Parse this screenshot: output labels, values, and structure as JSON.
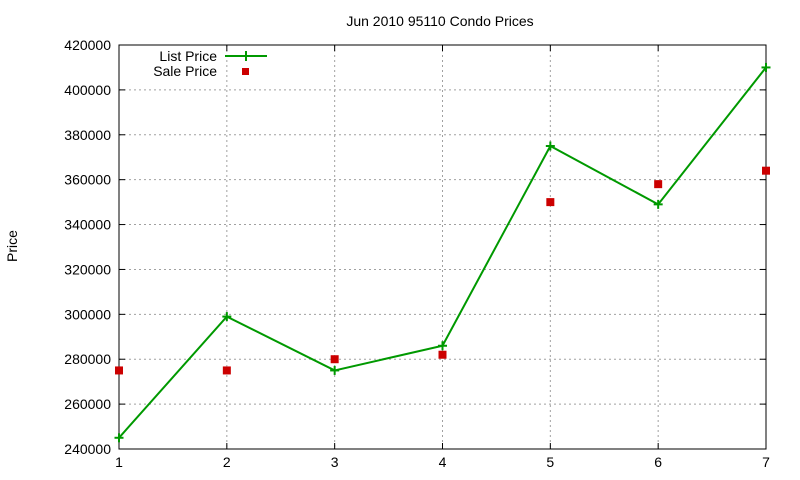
{
  "chart_data": {
    "type": "line",
    "title": "Jun 2010 95110 Condo Prices",
    "xlabel": "",
    "ylabel": "Price",
    "xlim": [
      1,
      7
    ],
    "ylim": [
      240000,
      420000
    ],
    "x_ticks": [
      1,
      2,
      3,
      4,
      5,
      6,
      7
    ],
    "y_ticks": [
      240000,
      260000,
      280000,
      300000,
      320000,
      340000,
      360000,
      380000,
      400000,
      420000
    ],
    "grid": true,
    "legend_position": "top-left",
    "series": [
      {
        "name": "List Price",
        "style": "line-with-plus-markers",
        "color": "#009900",
        "x": [
          1,
          2,
          3,
          4,
          5,
          6,
          7
        ],
        "values": [
          245000,
          299000,
          275000,
          286000,
          375000,
          349000,
          410000
        ]
      },
      {
        "name": "Sale Price",
        "style": "square-markers",
        "color": "#cc0000",
        "x": [
          1,
          2,
          3,
          4,
          5,
          6,
          7
        ],
        "values": [
          275000,
          275000,
          280000,
          282000,
          350000,
          358000,
          364000
        ]
      }
    ]
  }
}
